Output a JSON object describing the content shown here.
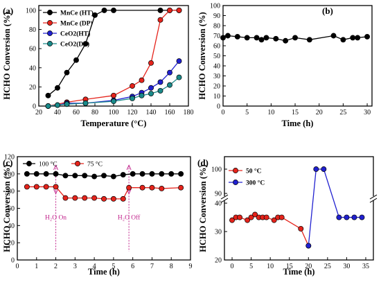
{
  "chart_data": [
    {
      "panel": "(a)",
      "type": "line",
      "xlabel": "Temperature (°C)",
      "ylabel": "HCHO Conversion (%)",
      "xlim": [
        20,
        180
      ],
      "ylim": [
        0,
        105
      ],
      "xticks": [
        "20",
        "40",
        "60",
        "80",
        "100",
        "120",
        "140",
        "160",
        "180"
      ],
      "yticks": [
        "0",
        "20",
        "40",
        "60",
        "80",
        "100"
      ],
      "legend_position": "top-left",
      "series": [
        {
          "name": "MnCe (HT)",
          "color": "#000000",
          "x": [
            30,
            40,
            50,
            60,
            70,
            80,
            90,
            100,
            150,
            160,
            170
          ],
          "y": [
            11,
            19,
            35,
            48,
            65,
            95,
            100,
            100,
            100,
            100,
            100
          ]
        },
        {
          "name": "MnCe (DP)",
          "color": "#e5231b",
          "x": [
            30,
            50,
            70,
            100,
            120,
            130,
            140,
            150,
            160,
            170
          ],
          "y": [
            0,
            4,
            7,
            11,
            21,
            27,
            45,
            90,
            100,
            100
          ]
        },
        {
          "name": "CeO2(HT)",
          "color": "#2020d0",
          "x": [
            30,
            40,
            50,
            70,
            100,
            120,
            130,
            140,
            150,
            160,
            170
          ],
          "y": [
            0,
            1,
            3,
            3,
            6,
            10,
            14,
            19,
            25,
            35,
            47
          ]
        },
        {
          "name": "CeO2(DP)",
          "color": "#1a8a8a",
          "x": [
            30,
            40,
            50,
            70,
            100,
            120,
            130,
            140,
            150,
            160,
            170
          ],
          "y": [
            0,
            1,
            2,
            3,
            5,
            8,
            11,
            13,
            16,
            22,
            30
          ]
        }
      ]
    },
    {
      "panel": "(b)",
      "type": "line",
      "xlabel": "Time (h)",
      "ylabel": "HCHO Conversion (%)",
      "xlim": [
        0,
        31
      ],
      "ylim": [
        0,
        100
      ],
      "xticks": [
        "0",
        "5",
        "10",
        "15",
        "20",
        "25",
        "30"
      ],
      "yticks": [
        "0",
        "10",
        "20",
        "30",
        "40",
        "50",
        "60",
        "70",
        "80",
        "90",
        "100"
      ],
      "series": [
        {
          "name": "",
          "color": "#000000",
          "x": [
            0,
            1,
            3,
            5,
            7,
            8,
            9,
            11,
            13,
            15,
            18,
            23,
            25,
            27,
            28,
            30
          ],
          "y": [
            68,
            70,
            69,
            68,
            68,
            66,
            68,
            67,
            65,
            68,
            66,
            70,
            66,
            68,
            68,
            69
          ]
        }
      ]
    },
    {
      "panel": "(c)",
      "type": "line",
      "xlabel": "Time (h)",
      "ylabel": "HCHO Conversion (%)",
      "xlim": [
        0,
        9
      ],
      "ylim": [
        0,
        120
      ],
      "xticks": [
        "0",
        "1",
        "2",
        "3",
        "4",
        "5",
        "6",
        "7",
        "8",
        "9"
      ],
      "yticks": [
        "0",
        "20",
        "40",
        "60",
        "80",
        "100",
        "120"
      ],
      "legend_position": "top-left",
      "series": [
        {
          "name": "100 °C",
          "color": "#000000",
          "x": [
            0.5,
            1,
            1.5,
            2,
            2.5,
            3,
            3.5,
            4,
            4.5,
            5,
            5.5,
            6,
            6.5,
            7,
            7.5,
            8,
            8.5
          ],
          "y": [
            100,
            100,
            100,
            100,
            98,
            98,
            98,
            97,
            98,
            97,
            99,
            100,
            100,
            100,
            100,
            100,
            100
          ]
        },
        {
          "name": "75 °C",
          "color": "#e5231b",
          "x": [
            0.5,
            1,
            1.5,
            2,
            2.5,
            3,
            3.5,
            4,
            4.5,
            5,
            5.5,
            5.8,
            6.5,
            7,
            7.5,
            8.5
          ],
          "y": [
            85,
            85,
            85,
            85,
            72,
            72,
            72,
            72,
            71,
            71,
            71,
            84,
            84,
            84,
            83,
            84
          ]
        }
      ],
      "annotations": [
        {
          "text": "H₂O On",
          "x": 2
        },
        {
          "text": "H₂O Off",
          "x": 5.8
        }
      ]
    },
    {
      "panel": "(d)",
      "type": "line",
      "xlabel": "Time (h)",
      "ylabel": "HCHO Conversion (%)",
      "xlim": [
        -2,
        37
      ],
      "ylim": [
        20,
        100
      ],
      "axis_break_between": [
        40,
        90
      ],
      "xticks": [
        "0",
        "5",
        "10",
        "15",
        "20",
        "25",
        "30",
        "35"
      ],
      "yticks": [
        "20",
        "30",
        "40",
        "90",
        "100"
      ],
      "legend_position": "top-left",
      "series": [
        {
          "name": "50 °C",
          "color": "#e5231b",
          "x": [
            0,
            1,
            2,
            4,
            5,
            6,
            7,
            8,
            9,
            11,
            12,
            13,
            18,
            20
          ],
          "y": [
            34,
            35,
            35,
            34,
            35,
            36,
            35,
            35,
            35,
            34,
            35,
            35,
            31,
            25
          ]
        },
        {
          "name": "300 °C",
          "color": "#2020d0",
          "x": [
            20,
            22,
            24,
            28,
            30,
            32,
            34
          ],
          "y": [
            25,
            100,
            100,
            35,
            35,
            35,
            35
          ]
        }
      ]
    }
  ]
}
